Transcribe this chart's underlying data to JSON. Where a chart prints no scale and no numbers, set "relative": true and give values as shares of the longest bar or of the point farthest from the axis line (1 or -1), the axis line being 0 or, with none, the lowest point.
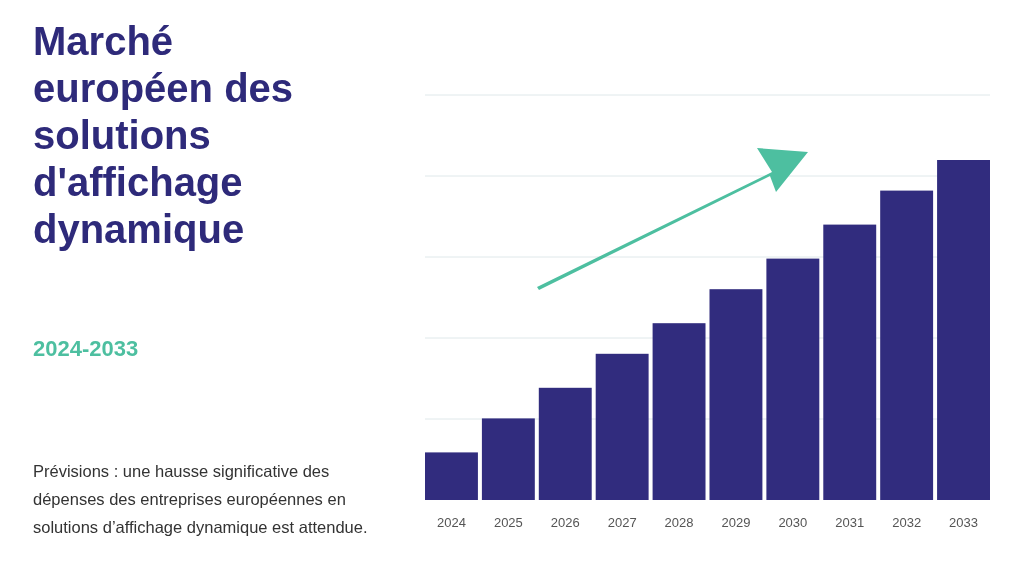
{
  "chart_data": {
    "type": "bar",
    "title": "Marché européen des solutions d'affichage dynamique",
    "subtitle": "2024-2033",
    "annotations": [
      "Prévisions : une hausse significative des dépenses des entreprises européennes en solutions d’affichage dynamique est attendue."
    ],
    "categories": [
      "2024",
      "2025",
      "2026",
      "2027",
      "2028",
      "2029",
      "2030",
      "2031",
      "2032",
      "2033"
    ],
    "values": [
      0.14,
      0.24,
      0.33,
      0.43,
      0.52,
      0.62,
      0.71,
      0.81,
      0.91,
      1
    ],
    "color": "#312c7e",
    "relative": true,
    "grid": true
  }
}
